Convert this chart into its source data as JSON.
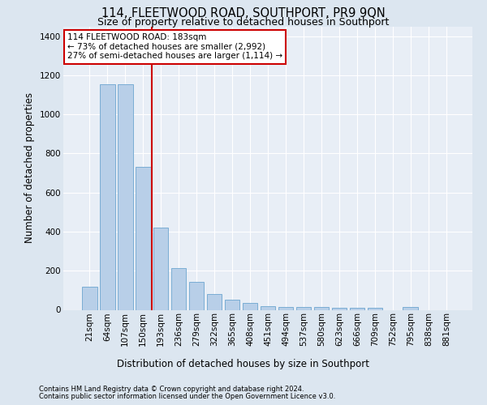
{
  "title": "114, FLEETWOOD ROAD, SOUTHPORT, PR9 9QN",
  "subtitle": "Size of property relative to detached houses in Southport",
  "xlabel": "Distribution of detached houses by size in Southport",
  "ylabel": "Number of detached properties",
  "footnote1": "Contains HM Land Registry data © Crown copyright and database right 2024.",
  "footnote2": "Contains public sector information licensed under the Open Government Licence v3.0.",
  "categories": [
    "21sqm",
    "64sqm",
    "107sqm",
    "150sqm",
    "193sqm",
    "236sqm",
    "279sqm",
    "322sqm",
    "365sqm",
    "408sqm",
    "451sqm",
    "494sqm",
    "537sqm",
    "580sqm",
    "623sqm",
    "666sqm",
    "709sqm",
    "752sqm",
    "795sqm",
    "838sqm",
    "881sqm"
  ],
  "values": [
    120,
    1155,
    1155,
    730,
    420,
    215,
    145,
    80,
    52,
    36,
    20,
    15,
    13,
    13,
    10,
    10,
    10,
    0,
    15,
    0,
    0
  ],
  "bar_color": "#b8cfe8",
  "bar_edge_color": "#7aadd4",
  "vline_x": 3.5,
  "vline_color": "#cc0000",
  "annotation_text": "114 FLEETWOOD ROAD: 183sqm\n← 73% of detached houses are smaller (2,992)\n27% of semi-detached houses are larger (1,114) →",
  "annotation_box_color": "#ffffff",
  "annotation_box_edge": "#cc0000",
  "ylim": [
    0,
    1450
  ],
  "yticks": [
    0,
    200,
    400,
    600,
    800,
    1000,
    1200,
    1400
  ],
  "bg_color": "#dce6f0",
  "plot_bg_color": "#e8eef6",
  "grid_color": "#ffffff",
  "title_fontsize": 10.5,
  "subtitle_fontsize": 9,
  "axis_label_fontsize": 8.5,
  "tick_fontsize": 7.5,
  "footnote_fontsize": 6,
  "annotation_fontsize": 7.5
}
